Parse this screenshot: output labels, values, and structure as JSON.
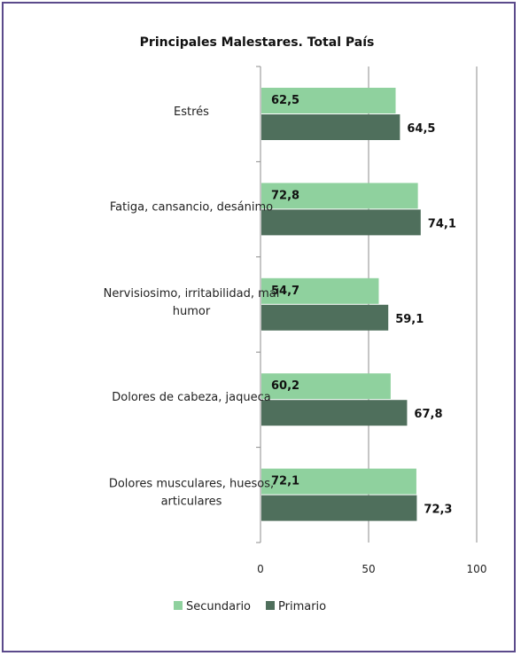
{
  "chart_data": {
    "type": "bar",
    "orientation": "horizontal",
    "title": "Principales Malestares. Total País",
    "categories": [
      [
        "Estrés"
      ],
      [
        "Fatiga, cansancio, desánimo"
      ],
      [
        "Nervisiosimo, irritabilidad, mal",
        "humor"
      ],
      [
        "Dolores de cabeza, jaqueca"
      ],
      [
        "Dolores musculares, huesos,",
        "articulares"
      ]
    ],
    "series": [
      {
        "name": "Secundario",
        "color": "#8fd19e",
        "values": [
          62.5,
          72.8,
          54.7,
          60.2,
          72.1
        ],
        "labels": [
          "62,5",
          "72,8",
          "54,7",
          "60,2",
          "72,1"
        ]
      },
      {
        "name": "Primario",
        "color": "#4f6f5c",
        "values": [
          64.5,
          74.1,
          59.1,
          67.8,
          72.3
        ],
        "labels": [
          "64,5",
          "74,1",
          "59,1",
          "67,8",
          "72,3"
        ]
      }
    ],
    "xlim": [
      0,
      100
    ],
    "xticks": [
      0,
      50,
      100
    ],
    "xtick_labels": [
      "0",
      "50",
      "100"
    ],
    "grid": "vertical major gridlines",
    "legend": "bottom"
  }
}
